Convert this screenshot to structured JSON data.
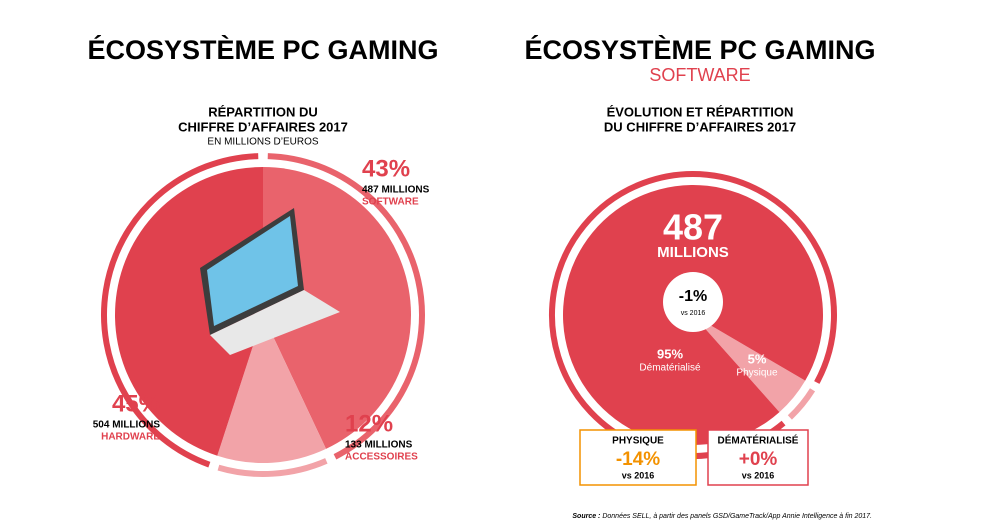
{
  "chart_data": [
    {
      "type": "pie",
      "title": "ÉCOSYSTÈME PC GAMING",
      "heading": [
        "RÉPARTITION DU",
        "CHIFFRE D’AFFAIRES 2017"
      ],
      "unit_note": "EN MILLIONS D’EUROS",
      "categories": [
        "SOFTWARE",
        "ACCESSOIRES",
        "HARDWARE"
      ],
      "values": [
        43,
        12,
        45
      ],
      "value_labels": [
        "43%",
        "12%",
        "45%"
      ],
      "amounts": [
        487,
        133,
        504
      ],
      "amount_labels": [
        "487 MILLIONS",
        "133 MILLIONS",
        "504 MILLIONS"
      ],
      "colors": [
        "#e9636c",
        "#f2a3a8",
        "#e0414e"
      ]
    },
    {
      "type": "pie",
      "title": "ÉCOSYSTÈME PC GAMING",
      "subtitle": "SOFTWARE",
      "heading": [
        "ÉVOLUTION ET RÉPARTITION",
        "DU CHIFFRE D’AFFAIRES 2017"
      ],
      "total": 487,
      "total_unit": "MILLIONS",
      "change": -1,
      "change_label": "-1%",
      "change_note": "vs 2016",
      "categories": [
        "Physique",
        "Dématérialisé"
      ],
      "values": [
        5,
        95
      ],
      "value_labels": [
        "5%",
        "95%"
      ],
      "colors": [
        "#f2a3a8",
        "#e0414e"
      ],
      "boxes": [
        {
          "label": "PHYSIQUE",
          "value": -14,
          "value_label": "-14%",
          "note": "vs 2016",
          "color": "#f39200"
        },
        {
          "label": "DÉMATÉRIALISÉ",
          "value": 0,
          "value_label": "+0%",
          "note": "vs 2016",
          "color": "#e0414e"
        }
      ]
    }
  ],
  "source_label": "Source :",
  "source": "Données SELL, à partir des panels GSD/GameTrack/App Annie Intelligence à fin 2017."
}
